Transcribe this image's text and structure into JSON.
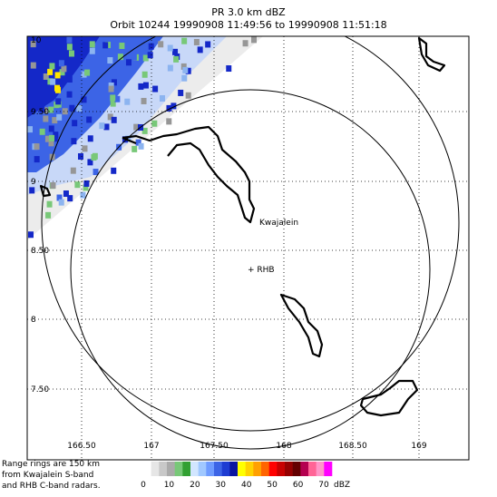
{
  "header": {
    "title": "PR  3.0 km dBZ",
    "subtitle": "Orbit 10244 19990908 11:49:56 to 19990908 11:51:18"
  },
  "map": {
    "lon_labels": [
      "166.50",
      "167",
      "167.50",
      "168",
      "168.50",
      "169"
    ],
    "lat_labels": [
      "10",
      "9.50",
      "9",
      "8.50",
      "8",
      "7.50"
    ],
    "places": [
      "Kwajalein",
      "+ RHB"
    ]
  },
  "footnote": [
    "Range rings are 150 km",
    "from Kwajalein S-band",
    "and RHB C-band radars."
  ],
  "colorbar": {
    "ticks": [
      0,
      10,
      20,
      30,
      40,
      50,
      60,
      70
    ],
    "unit": "dBZ"
  }
}
